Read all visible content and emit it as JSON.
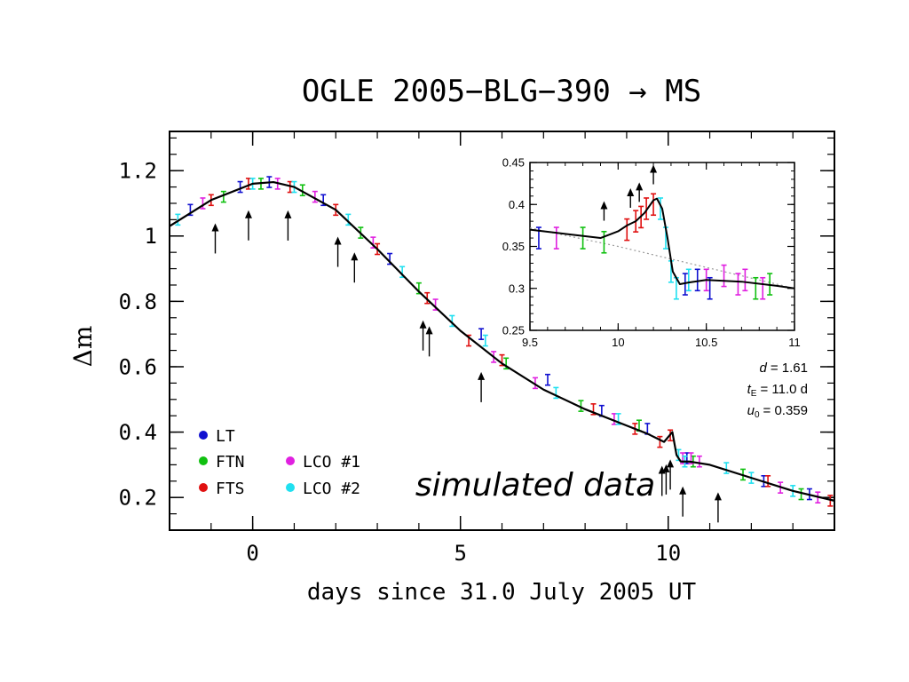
{
  "chart_data": [
    {
      "id": "main",
      "type": "scatter",
      "title": "OGLE 2005−BLG−390 → MS",
      "xlabel": "days since 31.0 July 2005 UT",
      "ylabel": "Δm",
      "xlim": [
        -2,
        14
      ],
      "ylim": [
        0.1,
        1.32
      ],
      "x_ticks": [
        0,
        5,
        10
      ],
      "x_tick_labels": [
        "0",
        "5",
        "10"
      ],
      "y_ticks": [
        0.2,
        0.4,
        0.6,
        0.8,
        1.0,
        1.2
      ],
      "y_tick_labels": [
        "0.2",
        "0.4",
        "0.6",
        "0.8",
        "1",
        "1.2"
      ],
      "annotation": "simulated data",
      "legend": [
        {
          "name": "LT",
          "color": "#1010d0"
        },
        {
          "name": "FTN",
          "color": "#10c010"
        },
        {
          "name": "FTS",
          "color": "#e01010"
        },
        {
          "name": "LCO #1",
          "color": "#e020e0"
        },
        {
          "name": "LCO #2",
          "color": "#20e0f0"
        }
      ],
      "model_curve": {
        "x": [
          -2,
          -1,
          0,
          0.5,
          1,
          2,
          3,
          4,
          5,
          6,
          7,
          8,
          9,
          9.5,
          9.9,
          10.1,
          10.2,
          10.3,
          10.5,
          11,
          12,
          13,
          14
        ],
        "y": [
          1.03,
          1.11,
          1.16,
          1.165,
          1.15,
          1.08,
          0.96,
          0.83,
          0.71,
          0.61,
          0.53,
          0.47,
          0.42,
          0.395,
          0.37,
          0.4,
          0.33,
          0.31,
          0.31,
          0.3,
          0.26,
          0.22,
          0.19
        ]
      },
      "series": [
        {
          "name": "LT",
          "x": [
            -1.5,
            -0.3,
            0.4,
            1.7,
            3.3,
            5.5,
            7.1,
            8.4,
            9.5,
            10.45,
            12.3,
            13.4
          ],
          "y": [
            1.08,
            1.15,
            1.165,
            1.11,
            0.93,
            0.7,
            0.56,
            0.465,
            0.41,
            0.32,
            0.25,
            0.21
          ]
        },
        {
          "name": "FTN",
          "x": [
            -0.7,
            0.2,
            1.2,
            2.6,
            4.0,
            6.1,
            7.9,
            9.3,
            10.6,
            11.8,
            13.2
          ],
          "y": [
            1.12,
            1.16,
            1.14,
            1.01,
            0.84,
            0.61,
            0.48,
            0.42,
            0.31,
            0.27,
            0.21
          ]
        },
        {
          "name": "FTS",
          "x": [
            -1.0,
            -0.1,
            0.9,
            2.0,
            3.0,
            4.2,
            5.2,
            6.0,
            8.2,
            9.2,
            9.8,
            10.05,
            12.4,
            13.9
          ],
          "y": [
            1.11,
            1.16,
            1.15,
            1.08,
            0.96,
            0.81,
            0.68,
            0.62,
            0.47,
            0.41,
            0.37,
            0.39,
            0.25,
            0.19
          ]
        },
        {
          "name": "LCO #1",
          "x": [
            -1.2,
            0.6,
            1.5,
            2.9,
            4.4,
            5.8,
            6.8,
            8.7,
            10.35,
            10.55,
            10.75,
            12.7,
            13.6
          ],
          "y": [
            1.1,
            1.16,
            1.12,
            0.98,
            0.79,
            0.63,
            0.55,
            0.44,
            0.32,
            0.32,
            0.31,
            0.23,
            0.2
          ]
        },
        {
          "name": "LCO #2",
          "x": [
            -1.8,
            0.0,
            1.0,
            2.3,
            3.6,
            4.8,
            5.6,
            7.3,
            8.8,
            10.25,
            10.4,
            11.4,
            12.0,
            13.0
          ],
          "y": [
            1.05,
            1.16,
            1.15,
            1.05,
            0.89,
            0.74,
            0.68,
            0.52,
            0.44,
            0.33,
            0.31,
            0.29,
            0.26,
            0.22
          ]
        }
      ],
      "event_arrows_x": [
        -0.9,
        -0.1,
        0.85,
        2.05,
        2.45,
        4.1,
        4.25,
        5.5,
        9.85,
        9.95,
        10.05,
        10.35,
        11.2
      ]
    },
    {
      "id": "inset",
      "type": "scatter",
      "xlim": [
        9.5,
        11
      ],
      "ylim": [
        0.25,
        0.45
      ],
      "x_ticks": [
        9.5,
        10,
        10.5,
        11
      ],
      "x_tick_labels": [
        "9.5",
        "10",
        "10.5",
        "11"
      ],
      "y_ticks": [
        0.25,
        0.3,
        0.35,
        0.4,
        0.45
      ],
      "y_tick_labels": [
        "0.25",
        "0.3",
        "0.35",
        "0.4",
        "0.45"
      ],
      "model_curve": {
        "x": [
          9.5,
          9.7,
          9.9,
          10.0,
          10.05,
          10.1,
          10.15,
          10.2,
          10.22,
          10.25,
          10.28,
          10.31,
          10.35,
          10.4,
          10.5,
          10.7,
          10.9,
          11.0
        ],
        "y": [
          0.37,
          0.365,
          0.36,
          0.368,
          0.375,
          0.38,
          0.39,
          0.405,
          0.407,
          0.395,
          0.36,
          0.32,
          0.305,
          0.307,
          0.31,
          0.308,
          0.303,
          0.3
        ]
      },
      "baseline_curve": {
        "x": [
          9.5,
          10.0,
          10.5,
          11.0
        ],
        "y": [
          0.372,
          0.35,
          0.325,
          0.3
        ]
      },
      "series": [
        {
          "name": "LT",
          "x": [
            9.55,
            10.38,
            10.45,
            10.52
          ],
          "y": [
            0.36,
            0.305,
            0.31,
            0.3
          ]
        },
        {
          "name": "FTN",
          "x": [
            9.8,
            9.92,
            10.78,
            10.86
          ],
          "y": [
            0.36,
            0.355,
            0.3,
            0.305
          ]
        },
        {
          "name": "FTS",
          "x": [
            10.05,
            10.1,
            10.13,
            10.16,
            10.2
          ],
          "y": [
            0.37,
            0.38,
            0.385,
            0.395,
            0.4
          ]
        },
        {
          "name": "LCO #1",
          "x": [
            9.65,
            10.5,
            10.6,
            10.68,
            10.72,
            10.82
          ],
          "y": [
            0.36,
            0.31,
            0.315,
            0.305,
            0.31,
            0.3
          ]
        },
        {
          "name": "LCO #2",
          "x": [
            10.24,
            10.27,
            10.3,
            10.33,
            10.4
          ],
          "y": [
            0.395,
            0.36,
            0.32,
            0.3,
            0.31
          ]
        }
      ],
      "event_arrows_x": [
        9.92,
        10.07,
        10.12,
        10.2
      ],
      "parameters": {
        "d_label": "d",
        "d_value": "= 1.61",
        "tE_label": "t",
        "tE_sub": "E",
        "tE_value": "= 11.0 d",
        "u0_label": "u",
        "u0_sub": "0",
        "u0_value": "= 0.359"
      }
    }
  ]
}
